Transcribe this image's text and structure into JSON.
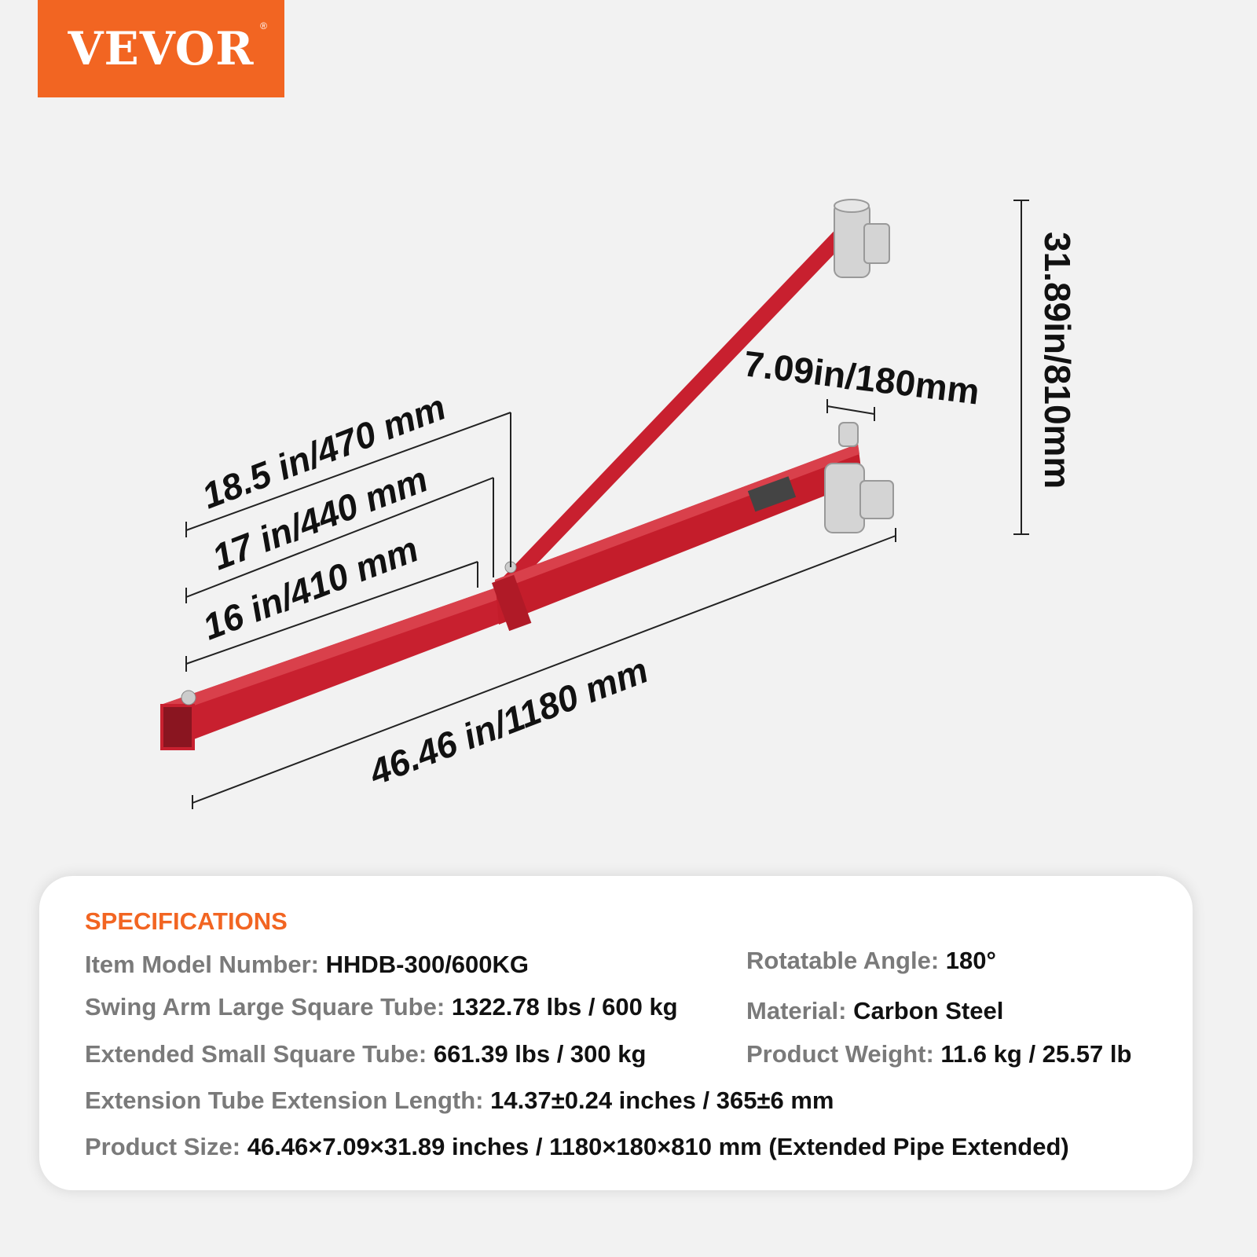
{
  "brand": {
    "logo_text": "VEVOR",
    "registered": "®",
    "color": "#f26522"
  },
  "dimensions": {
    "bracket_distance": "18.5 in/470 mm",
    "mid_distance": "17 in/440 mm",
    "short_distance": "16 in/410 mm",
    "total_length": "46.46 in/1180 mm",
    "mount_width": "7.09in/180mm",
    "height": "31.89in/810mm"
  },
  "specifications": {
    "title": "SPECIFICATIONS",
    "items": [
      {
        "label": "Item Model Number:",
        "value": "HHDB-300/600KG"
      },
      {
        "label": "Rotatable Angle:",
        "value": "180°"
      },
      {
        "label": "Swing Arm Large Square Tube:",
        "value": "1322.78 lbs / 600 kg"
      },
      {
        "label": "Material:",
        "value": "Carbon Steel"
      },
      {
        "label": "Extended Small Square Tube:",
        "value": "661.39 lbs / 300 kg"
      },
      {
        "label": "Product Weight:",
        "value": "11.6 kg / 25.57 lb"
      },
      {
        "label": "Extension Tube Extension Length:",
        "value": "14.37±0.24 inches / 365±6 mm"
      },
      {
        "label": "Product Size:",
        "value": "46.46×7.09×31.89 inches / 1180×180×810 mm (Extended Pipe Extended)"
      }
    ]
  },
  "colors": {
    "arm": "#c8202f",
    "accent": "#f26522"
  }
}
